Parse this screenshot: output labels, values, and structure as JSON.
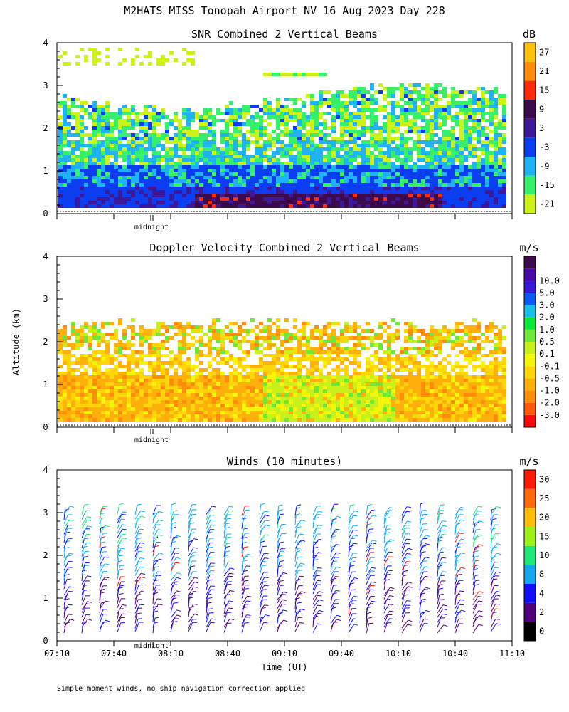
{
  "page_title": "M2HATS MISS Tonopah Airport NV  16 Aug 2023 Day 228",
  "y_axis_label": "Altitude (km)",
  "x_axis_label": "Time (UT)",
  "footnote": "Simple moment winds, no ship navigation correction applied",
  "midnight_label": "midnight",
  "chart_data": [
    {
      "type": "heatmap",
      "title": "SNR Combined 2 Vertical Beams",
      "unit": "dB",
      "ylim": [
        0,
        4
      ],
      "yticks": [
        "0",
        "1",
        "2",
        "3",
        "4"
      ],
      "colorbar": {
        "colors": [
          "#ccf21a",
          "#36f06a",
          "#1fb3f5",
          "#0a3ef0",
          "#3d1899",
          "#3d0a4d",
          "#ff2a0a",
          "#ff8c0a",
          "#ffc20a"
        ],
        "labels": [
          "-21",
          "-15",
          "-9",
          "-3",
          "3",
          "9",
          "15",
          "21",
          "27"
        ]
      }
    },
    {
      "type": "heatmap",
      "title": "Doppler Velocity Combined 2 Vertical Beams",
      "unit": "m/s",
      "ylim": [
        0,
        4
      ],
      "yticks": [
        "0",
        "1",
        "2",
        "3",
        "4"
      ],
      "colorbar": {
        "colors": [
          "#ff0a0a",
          "#ff5a0a",
          "#ff8c0a",
          "#ffb00a",
          "#ffd60a",
          "#f5f50a",
          "#c8f01a",
          "#6fe83a",
          "#0ae83a",
          "#18c0e8",
          "#0a5af5",
          "#3a18d8",
          "#4a0aa8",
          "#3d0a4d"
        ],
        "labels": [
          "-3.0",
          "-2.0",
          "-1.0",
          "-0.5",
          "-0.1",
          "0.1",
          "0.5",
          "1.0",
          "2.0",
          "3.0",
          "5.0",
          "10.0"
        ]
      }
    },
    {
      "type": "scatter",
      "title": "Winds (10 minutes)",
      "unit": "m/s",
      "ylim": [
        0,
        4
      ],
      "yticks": [
        "0",
        "1",
        "2",
        "3",
        "4"
      ],
      "xticks": [
        "07:10",
        "07:40",
        "08:10",
        "08:40",
        "09:10",
        "09:40",
        "10:10",
        "10:40",
        "11:10"
      ],
      "colorbar": {
        "colors": [
          "#000000",
          "#50007a",
          "#1010ff",
          "#15a8f0",
          "#1ee87a",
          "#9ef01a",
          "#ffbe0a",
          "#ff6a0a",
          "#ff1a0a"
        ],
        "labels": [
          "0",
          "2",
          "4",
          "8",
          "10",
          "15",
          "20",
          "25",
          "30"
        ]
      }
    }
  ]
}
